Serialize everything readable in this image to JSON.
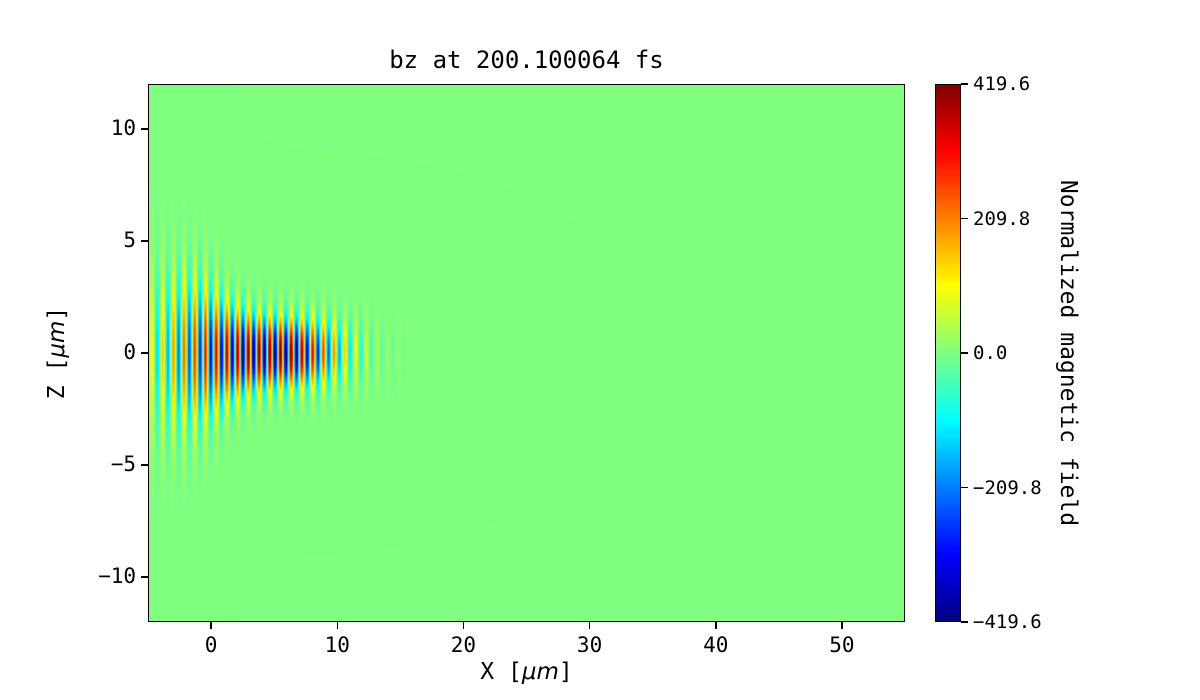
{
  "figure": {
    "background": "#ffffff",
    "frame_color": "#000000",
    "text_color": "#000000"
  },
  "chart_data": {
    "type": "heatmap",
    "title": "bz at 200.100064 fs",
    "xlabel": {
      "pre": "X [",
      "math": "μm",
      "post": "]"
    },
    "ylabel": {
      "pre": "Z [",
      "math": "μm",
      "post": "]"
    },
    "xlim": [
      -5,
      55
    ],
    "ylim": [
      -12,
      12
    ],
    "xticks": [
      0,
      10,
      20,
      30,
      40,
      50
    ],
    "xtick_labels": [
      "0",
      "10",
      "20",
      "30",
      "40",
      "50"
    ],
    "yticks": [
      10,
      5,
      0,
      -5,
      -10
    ],
    "ytick_labels": [
      "10",
      "5",
      "0",
      "−5",
      "−10"
    ],
    "grid": false,
    "colormap": "jet",
    "zero_value_color": "#80ff80",
    "colorbar": {
      "label": "Normalized magnetic field",
      "vmin": -419.6,
      "vmax": 419.6,
      "ticks": [
        419.6,
        209.8,
        0.0,
        -209.8,
        -419.6
      ],
      "tick_labels": [
        "419.6",
        "209.8",
        "0.0",
        "−209.8",
        "−419.6"
      ]
    },
    "field": {
      "kind": "laser-pulse-snapshot",
      "peak_amplitude": 419.6,
      "wavelength_um": 0.85,
      "pulse_center_x_um": 5.5,
      "pulse_extent_x_um": [
        -5,
        15
      ],
      "envelope_main_sigma_um": 5.0,
      "envelope_wing_amplitude": 0.5,
      "envelope_wing_center_um": -1.0,
      "envelope_wing_sigma_um": 4.5,
      "waist_base_um": 1.5,
      "waist_extra_um": 2.0,
      "waist_transition_x_um": 0.5,
      "waist_transition_scale_um": 1.2
    }
  }
}
